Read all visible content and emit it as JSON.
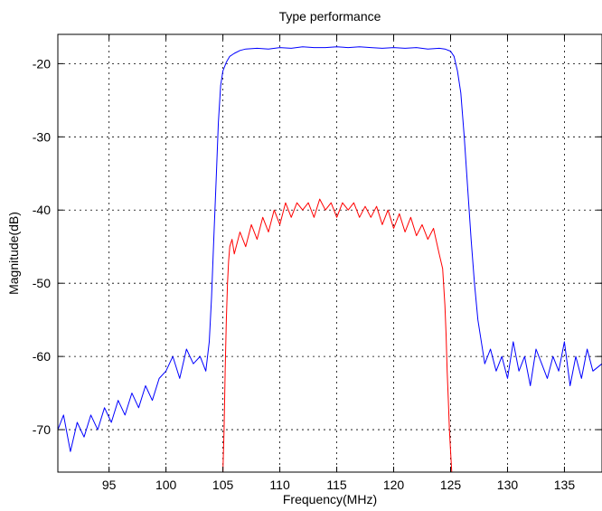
{
  "chart_data": {
    "type": "line",
    "title": "Type performance",
    "xlabel": "Frequency(MHz)",
    "ylabel": "Magnitude(dB)",
    "xlim": [
      90.5,
      138.3
    ],
    "ylim": [
      -75.8,
      -16
    ],
    "grid": true,
    "x_ticks": [
      95,
      100,
      105,
      110,
      115,
      120,
      125,
      130,
      135
    ],
    "y_ticks": [
      -70,
      -60,
      -50,
      -40,
      -30,
      -20
    ],
    "x_tick_labels": [
      "95",
      "100",
      "105",
      "110",
      "115",
      "120",
      "125",
      "130",
      "135"
    ],
    "y_tick_labels": [
      "-70",
      "-60",
      "-50",
      "-40",
      "-30",
      "-20"
    ],
    "series": [
      {
        "color": "#0000ff",
        "x": [
          90.5,
          91.0,
          91.6,
          92.2,
          92.8,
          93.4,
          94.0,
          94.6,
          95.2,
          95.8,
          96.4,
          97.0,
          97.6,
          98.2,
          98.8,
          99.4,
          100.0,
          100.6,
          101.2,
          101.8,
          102.4,
          103.0,
          103.5,
          103.8,
          104.0,
          104.2,
          104.4,
          104.6,
          104.8,
          105.0,
          105.3,
          105.6,
          106.0,
          106.5,
          107.0,
          108.0,
          109.0,
          110.0,
          111.0,
          112.0,
          113.0,
          114.0,
          115.0,
          116.0,
          117.0,
          118.0,
          119.0,
          120.0,
          121.0,
          122.0,
          123.0,
          124.0,
          124.5,
          125.0,
          125.3,
          125.6,
          125.9,
          126.2,
          126.5,
          126.8,
          127.1,
          127.4,
          127.7,
          128.0,
          128.5,
          129.0,
          129.5,
          130.0,
          130.5,
          131.0,
          131.5,
          132.0,
          132.5,
          133.0,
          133.5,
          134.0,
          134.5,
          135.0,
          135.5,
          136.0,
          136.5,
          137.0,
          137.5,
          138.3
        ],
        "y": [
          -70,
          -68,
          -73,
          -69,
          -71,
          -68,
          -70,
          -67,
          -69,
          -66,
          -68,
          -65,
          -67,
          -64,
          -66,
          -63,
          -62,
          -60,
          -63,
          -59,
          -61,
          -60,
          -62,
          -58,
          -52,
          -44,
          -36,
          -28,
          -23,
          -21,
          -19.8,
          -19,
          -18.6,
          -18.2,
          -18.0,
          -17.9,
          -18.0,
          -17.8,
          -17.9,
          -17.7,
          -17.8,
          -17.8,
          -17.7,
          -17.8,
          -17.7,
          -17.8,
          -17.9,
          -17.8,
          -17.9,
          -17.8,
          -18.0,
          -17.9,
          -18.0,
          -18.3,
          -19,
          -21,
          -24,
          -30,
          -37,
          -44,
          -50,
          -55,
          -58,
          -61,
          -59,
          -62,
          -60,
          -63,
          -58,
          -62,
          -60,
          -64,
          -59,
          -61,
          -63,
          -60,
          -62,
          -58,
          -64,
          -60,
          -63,
          -59,
          -62,
          -61
        ]
      },
      {
        "color": "#ff0000",
        "x": [
          105.0,
          105.1,
          105.2,
          105.3,
          105.4,
          105.5,
          105.6,
          105.8,
          106.0,
          106.5,
          107.0,
          107.5,
          108.0,
          108.5,
          109.0,
          109.5,
          110.0,
          110.5,
          111.0,
          111.5,
          112.0,
          112.5,
          113.0,
          113.5,
          114.0,
          114.5,
          115.0,
          115.5,
          116.0,
          116.5,
          117.0,
          117.5,
          118.0,
          118.5,
          119.0,
          119.5,
          120.0,
          120.5,
          121.0,
          121.5,
          122.0,
          122.5,
          123.0,
          123.5,
          124.0,
          124.3,
          124.5,
          124.6,
          124.7,
          124.8,
          124.9,
          125.0,
          125.1
        ],
        "y": [
          -75.8,
          -70,
          -62,
          -55,
          -50,
          -47,
          -45,
          -44,
          -46,
          -43,
          -45,
          -42,
          -44,
          -41,
          -43,
          -40,
          -42,
          -39,
          -41,
          -39,
          -40,
          -39,
          -41,
          -38.5,
          -40,
          -39,
          -41,
          -39,
          -40,
          -39,
          -41,
          -39.5,
          -41,
          -39.5,
          -42,
          -40,
          -42.5,
          -40.5,
          -43,
          -41,
          -43.5,
          -42,
          -44,
          -42.5,
          -46,
          -48,
          -53,
          -57,
          -62,
          -66,
          -70,
          -73,
          -75.8
        ]
      }
    ]
  }
}
